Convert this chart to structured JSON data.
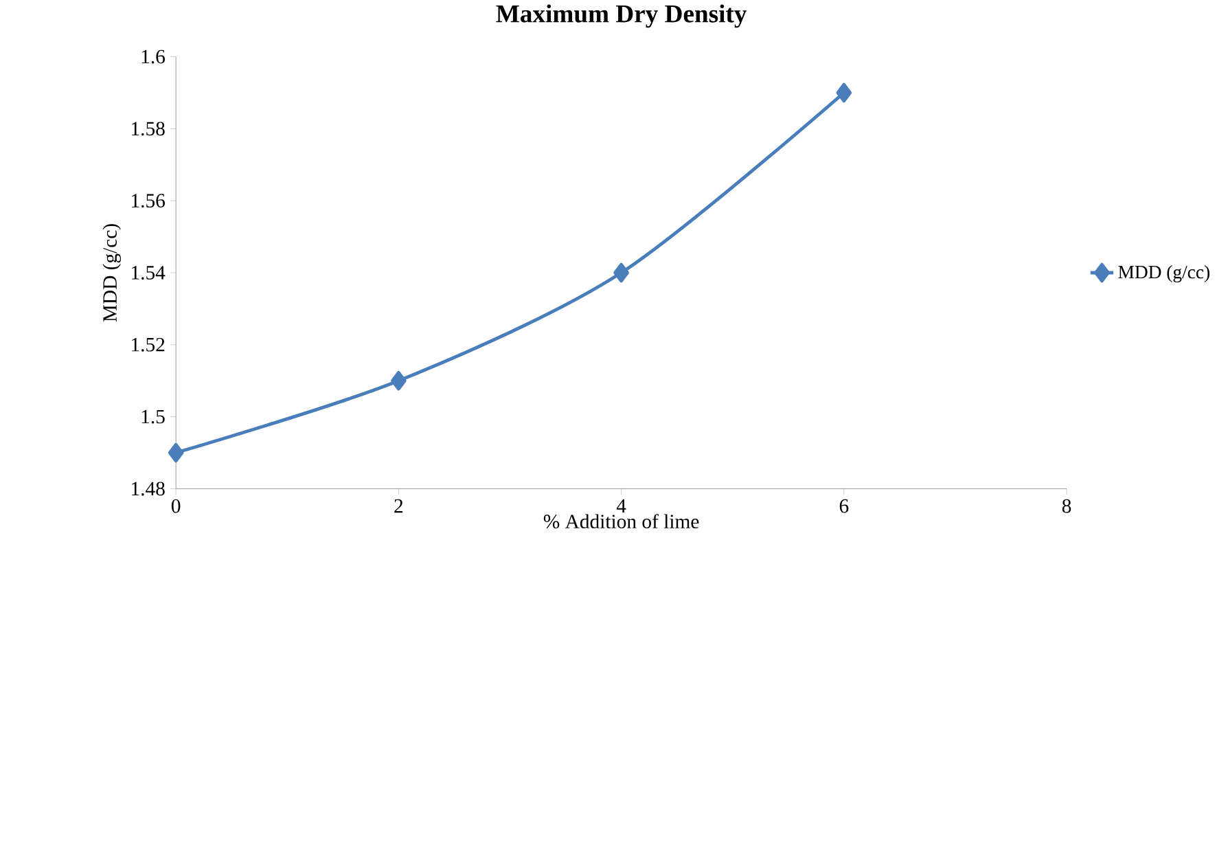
{
  "chart_data": {
    "type": "line",
    "title": "Maximum Dry Density",
    "xlabel": "% Addition of lime",
    "ylabel": "MDD (g/cc)",
    "x": [
      0,
      2,
      4,
      6
    ],
    "series": [
      {
        "name": "MDD (g/cc)",
        "color": "#4a7ebb",
        "values": [
          1.49,
          1.51,
          1.54,
          1.59
        ]
      }
    ],
    "xlim": [
      0,
      8
    ],
    "xticks": [
      0,
      2,
      4,
      6,
      8
    ],
    "ylim": [
      1.48,
      1.6
    ],
    "yticks": [
      1.48,
      1.5,
      1.52,
      1.54,
      1.56,
      1.58,
      1.6
    ],
    "grid": false,
    "legend": "right",
    "marker": "diamond",
    "line_style": "solid"
  }
}
